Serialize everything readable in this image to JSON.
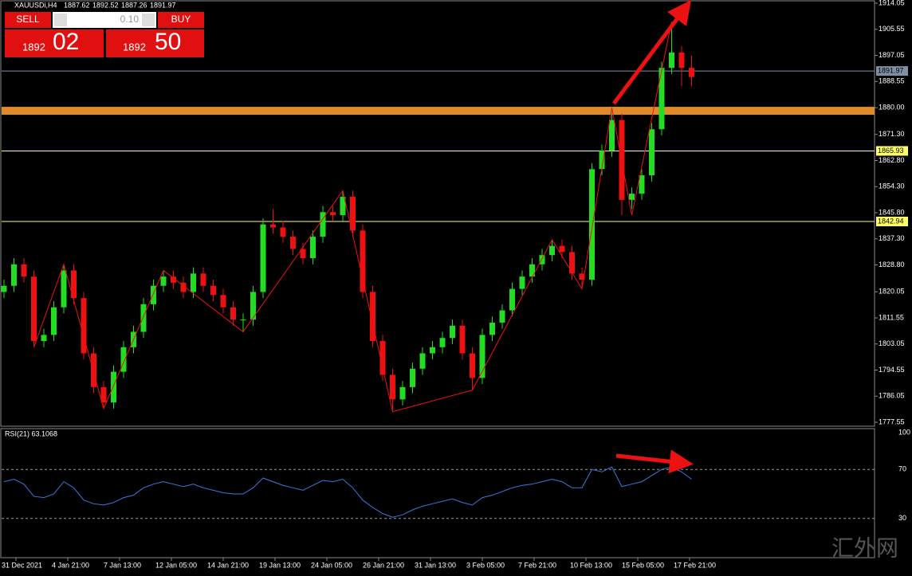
{
  "chart_data": {
    "type": "candlestick",
    "symbol": "XAUUSDi,H4",
    "header_ohlc": [
      "1887.62",
      "1892.52",
      "1887.26",
      "1891.97"
    ],
    "candles": [
      [
        1820,
        1824,
        1818,
        1822
      ],
      [
        1822,
        1831,
        1820,
        1829
      ],
      [
        1829,
        1831,
        1823,
        1825
      ],
      [
        1825,
        1827,
        1802,
        1804
      ],
      [
        1804,
        1808,
        1802,
        1806
      ],
      [
        1806,
        1817,
        1804,
        1815
      ],
      [
        1815,
        1829,
        1813,
        1827
      ],
      [
        1827,
        1829,
        1816,
        1818
      ],
      [
        1818,
        1820,
        1798,
        1800
      ],
      [
        1800,
        1802,
        1787,
        1789
      ],
      [
        1789,
        1791,
        1782,
        1784
      ],
      [
        1784,
        1796,
        1782,
        1794
      ],
      [
        1794,
        1804,
        1792,
        1802
      ],
      [
        1802,
        1809,
        1800,
        1807
      ],
      [
        1807,
        1818,
        1805,
        1816
      ],
      [
        1816,
        1824,
        1814,
        1822
      ],
      [
        1822,
        1827,
        1820,
        1825
      ],
      [
        1825,
        1827,
        1821,
        1823
      ],
      [
        1823,
        1825,
        1818,
        1820
      ],
      [
        1820,
        1828,
        1818,
        1826
      ],
      [
        1826,
        1828,
        1820,
        1822
      ],
      [
        1822,
        1824,
        1817,
        1819
      ],
      [
        1819,
        1821,
        1813,
        1815
      ],
      [
        1815,
        1817,
        1809,
        1811
      ],
      [
        1811,
        1813,
        1807,
        1811
      ],
      [
        1811,
        1822,
        1809,
        1820
      ],
      [
        1820,
        1844,
        1818,
        1842
      ],
      [
        1842,
        1847,
        1839,
        1841
      ],
      [
        1841,
        1843,
        1836,
        1838
      ],
      [
        1838,
        1840,
        1832,
        1834
      ],
      [
        1834,
        1836,
        1829,
        1831
      ],
      [
        1831,
        1840,
        1829,
        1838
      ],
      [
        1838,
        1848,
        1836,
        1846
      ],
      [
        1846,
        1848,
        1843,
        1845
      ],
      [
        1845,
        1853,
        1843,
        1851
      ],
      [
        1851,
        1853,
        1838,
        1840
      ],
      [
        1840,
        1842,
        1818,
        1820
      ],
      [
        1820,
        1822,
        1802,
        1804
      ],
      [
        1804,
        1806,
        1791,
        1793
      ],
      [
        1793,
        1795,
        1781,
        1785
      ],
      [
        1785,
        1791,
        1783,
        1789
      ],
      [
        1789,
        1797,
        1787,
        1795
      ],
      [
        1795,
        1802,
        1793,
        1800
      ],
      [
        1800,
        1804,
        1798,
        1802
      ],
      [
        1802,
        1807,
        1800,
        1805
      ],
      [
        1805,
        1811,
        1803,
        1809
      ],
      [
        1809,
        1811,
        1798,
        1800
      ],
      [
        1800,
        1802,
        1788,
        1792
      ],
      [
        1792,
        1808,
        1790,
        1806
      ],
      [
        1806,
        1812,
        1804,
        1810
      ],
      [
        1810,
        1816,
        1808,
        1814
      ],
      [
        1814,
        1823,
        1812,
        1821
      ],
      [
        1821,
        1827,
        1819,
        1825
      ],
      [
        1825,
        1831,
        1823,
        1829
      ],
      [
        1829,
        1834,
        1827,
        1832
      ],
      [
        1832,
        1837,
        1830,
        1835
      ],
      [
        1835,
        1837,
        1831,
        1833
      ],
      [
        1833,
        1835,
        1824,
        1826
      ],
      [
        1826,
        1828,
        1821,
        1824
      ],
      [
        1824,
        1862,
        1822,
        1860
      ],
      [
        1860,
        1868,
        1858,
        1866
      ],
      [
        1866,
        1880,
        1864,
        1876
      ],
      [
        1876,
        1878,
        1845,
        1850
      ],
      [
        1850,
        1854,
        1847,
        1852
      ],
      [
        1852,
        1860,
        1850,
        1858
      ],
      [
        1858,
        1875,
        1856,
        1873
      ],
      [
        1873,
        1895,
        1871,
        1893
      ],
      [
        1893,
        1908,
        1891,
        1898
      ],
      [
        1898,
        1900,
        1887,
        1893
      ],
      [
        1893,
        1897,
        1887,
        1890
      ]
    ],
    "up_color": "#22dd22",
    "down_color": "#ee1111",
    "ylim": [
      1776.26,
      1914.83
    ],
    "yticks": [
      1914.05,
      1905.55,
      1897.05,
      1888.55,
      {
        "value": 1880.0,
        "label": "1880.00"
      },
      {
        "value": 1871.3,
        "label": "1871.30"
      },
      {
        "value": 1862.8,
        "label": "1862.80"
      },
      {
        "value": 1854.3,
        "label": "1854.30"
      },
      {
        "value": 1845.8,
        "label": "1845.80"
      },
      {
        "value": 1837.3,
        "label": "1837.30"
      },
      {
        "value": 1828.8,
        "label": "1828.80"
      },
      1820.05,
      1811.55,
      1803.05,
      1794.55,
      1786.05,
      1777.55
    ],
    "levels": [
      {
        "value": 1891.97,
        "color": "#7f8fa6"
      },
      {
        "value": 1865.93,
        "color": "#ffff66"
      },
      {
        "value": 1842.94,
        "color": "#ffff66"
      }
    ],
    "zone": 1879,
    "zone_color": "#e08a2c",
    "zigzag": {
      "x": [
        3,
        6,
        10,
        16,
        24,
        34,
        39,
        47,
        55,
        58,
        61,
        63,
        67
      ],
      "values": [
        1802,
        1829,
        1782,
        1827,
        1807,
        1853,
        1781,
        1788,
        1837,
        1821,
        1880,
        1845,
        1908
      ],
      "color": "#ee1111"
    },
    "xticks": [
      {
        "value": 1.2,
        "label": "31 Dec 2021"
      },
      {
        "value": 6.4,
        "label": "4 Jan 21:00"
      },
      {
        "value": 11.6,
        "label": "7 Jan 13:00"
      },
      {
        "value": 16.8,
        "label": "12 Jan 05:00"
      },
      {
        "value": 22,
        "label": "14 Jan 21:00"
      },
      {
        "value": 27.2,
        "label": "19 Jan 13:00"
      },
      {
        "value": 32.4,
        "label": "24 Jan 05:00"
      },
      {
        "value": 37.6,
        "label": "26 Jan 21:00"
      },
      {
        "value": 42.8,
        "label": "31 Jan 13:00"
      },
      {
        "value": 48,
        "label": "3 Feb 05:00"
      },
      {
        "value": 53.2,
        "label": "7 Feb 21:00"
      },
      {
        "value": 58.4,
        "label": "10 Feb 13:00"
      },
      {
        "value": 63.6,
        "label": "15 Feb 05:00"
      },
      {
        "value": 68.8,
        "label": "17 Feb 21:00"
      }
    ],
    "rsi": {
      "label": "RSI(21) 63.1068",
      "color": "#3a78e0",
      "ylim": [
        0,
        100
      ],
      "yticks": [
        100,
        70,
        30
      ],
      "values": [
        60,
        62,
        58,
        48,
        47,
        50,
        60,
        55,
        45,
        42,
        41,
        43,
        47,
        49,
        55,
        58,
        60,
        58,
        56,
        58,
        55,
        53,
        51,
        50,
        50,
        55,
        63,
        60,
        57,
        55,
        53,
        57,
        61,
        60,
        62,
        55,
        45,
        39,
        34,
        31,
        33,
        37,
        40,
        42,
        44,
        46,
        43,
        41,
        47,
        49,
        52,
        55,
        57,
        58,
        60,
        62,
        60,
        55,
        55,
        70,
        68,
        72,
        56,
        58,
        60,
        65,
        70,
        72,
        68,
        62
      ]
    }
  },
  "trade_panel": {
    "sell": "SELL",
    "buy": "BUY",
    "lot": "0.10",
    "sell_big": "1892",
    "sell_small": "02",
    "buy_big": "1892",
    "buy_small": "50"
  },
  "watermark": "汇外网"
}
